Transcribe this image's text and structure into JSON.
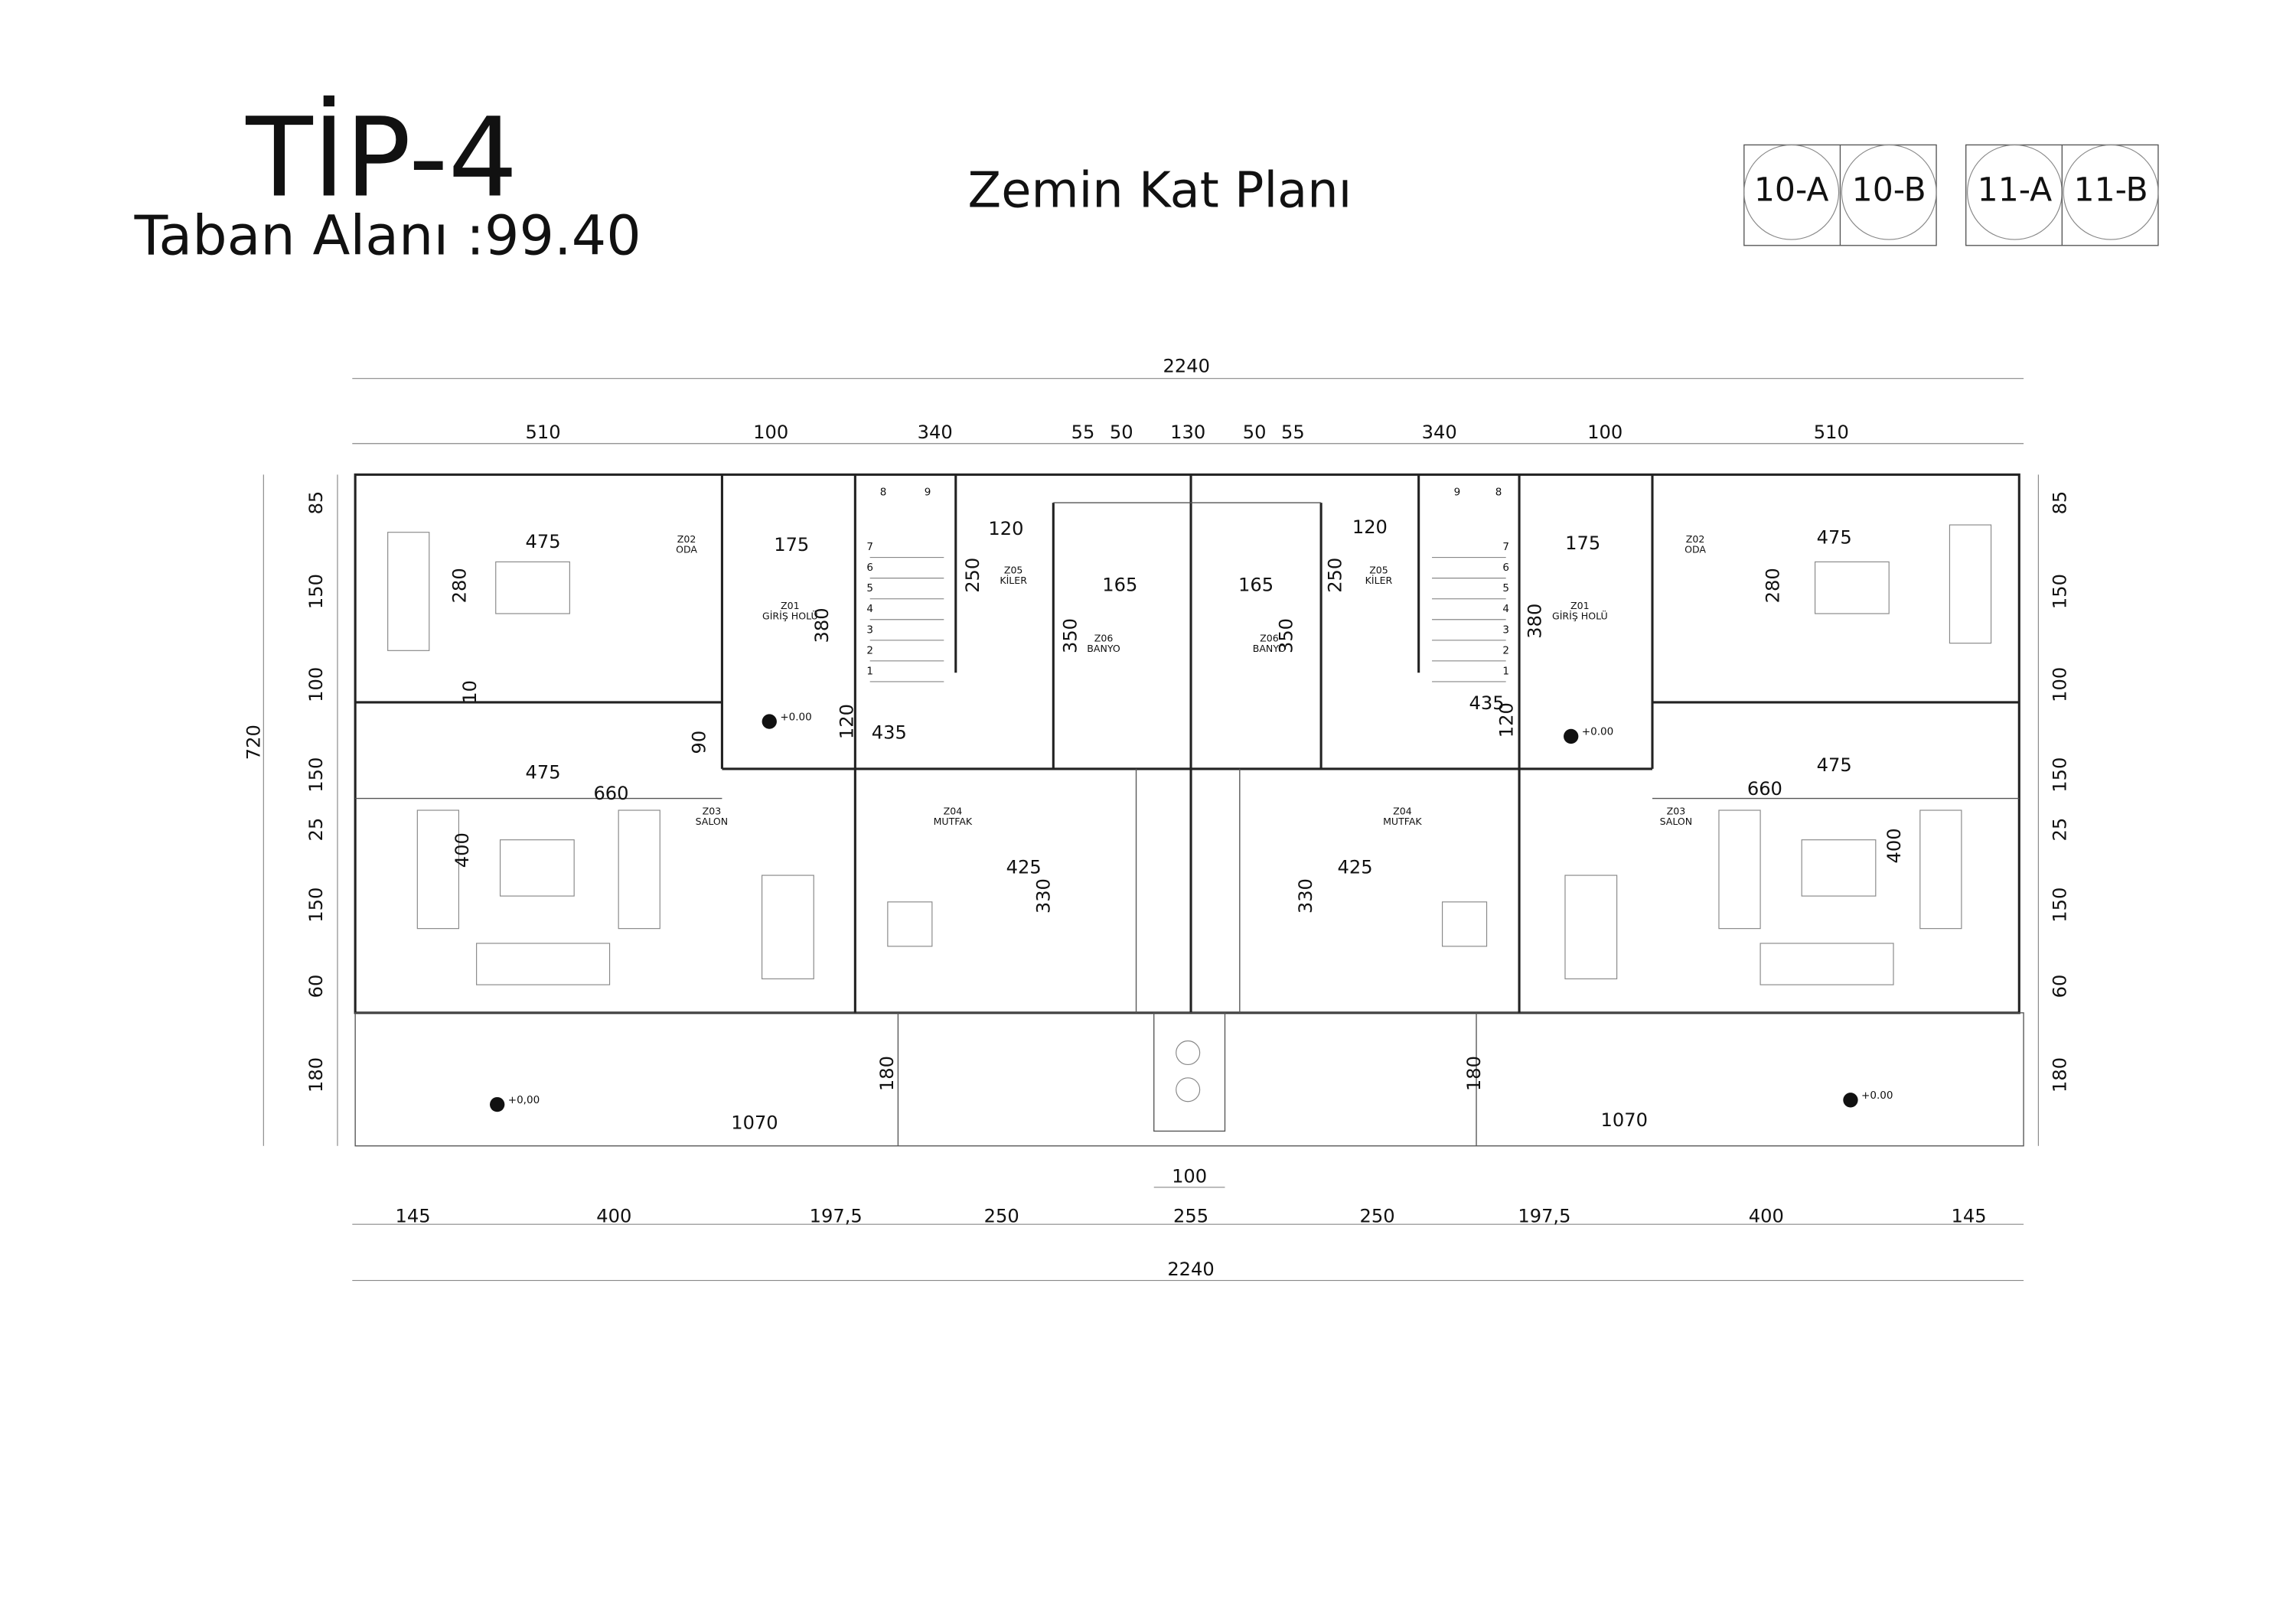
{
  "header": {
    "title": "TİP-4",
    "subtitle": "Taban Alanı :99.40",
    "plan_title": "Zemin Kat Planı",
    "units": [
      "10-A",
      "10-B",
      "11-A",
      "11-B"
    ]
  },
  "dimensions": {
    "top_total": "2240",
    "top": [
      "510",
      "100",
      "340",
      "55",
      "50",
      "130",
      "50",
      "55",
      "340",
      "100",
      "510"
    ],
    "bottom": [
      "145",
      "400",
      "197,5",
      "250",
      "255",
      "250",
      "197,5",
      "400",
      "145"
    ],
    "bottom_total": "2240",
    "middle": "100",
    "left": [
      "85",
      "150",
      "100",
      "150",
      "25",
      "150",
      "60",
      "180"
    ],
    "left_total": "720",
    "right": [
      "85",
      "150",
      "100",
      "150",
      "25",
      "150",
      "60",
      "180"
    ],
    "inner_left": [
      "475",
      "280",
      "175",
      "380",
      "120",
      "250",
      "165",
      "350",
      "10",
      "90",
      "120",
      "435",
      "475",
      "660",
      "400",
      "425",
      "330",
      "180",
      "1070"
    ],
    "inner_right": [
      "475",
      "280",
      "175",
      "380",
      "120",
      "250",
      "165",
      "350",
      "435",
      "120",
      "475",
      "660",
      "400",
      "425",
      "330",
      "180",
      "1070"
    ]
  },
  "rooms": [
    {
      "code": "Z02",
      "name": "ODA"
    },
    {
      "code": "Z01",
      "name": "GİRİŞ HOLÜ"
    },
    {
      "code": "Z05",
      "name": "KİLER"
    },
    {
      "code": "Z06",
      "name": "BANYO"
    },
    {
      "code": "Z03",
      "name": "SALON"
    },
    {
      "code": "Z04",
      "name": "MUTFAK"
    },
    {
      "code": "Z02",
      "name": "ODA"
    },
    {
      "code": "Z01",
      "name": "GİRİŞ HOLÜ"
    },
    {
      "code": "Z05",
      "name": "KİLER"
    },
    {
      "code": "Z06",
      "name": "BANYO"
    },
    {
      "code": "Z03",
      "name": "SALON"
    },
    {
      "code": "Z04",
      "name": "MUTFAK"
    }
  ],
  "levels": [
    "+0.00",
    "+0.00",
    "+0,00",
    "+0.00"
  ],
  "stair_steps": [
    "1",
    "2",
    "3",
    "4",
    "5",
    "6",
    "7",
    "8",
    "9"
  ]
}
